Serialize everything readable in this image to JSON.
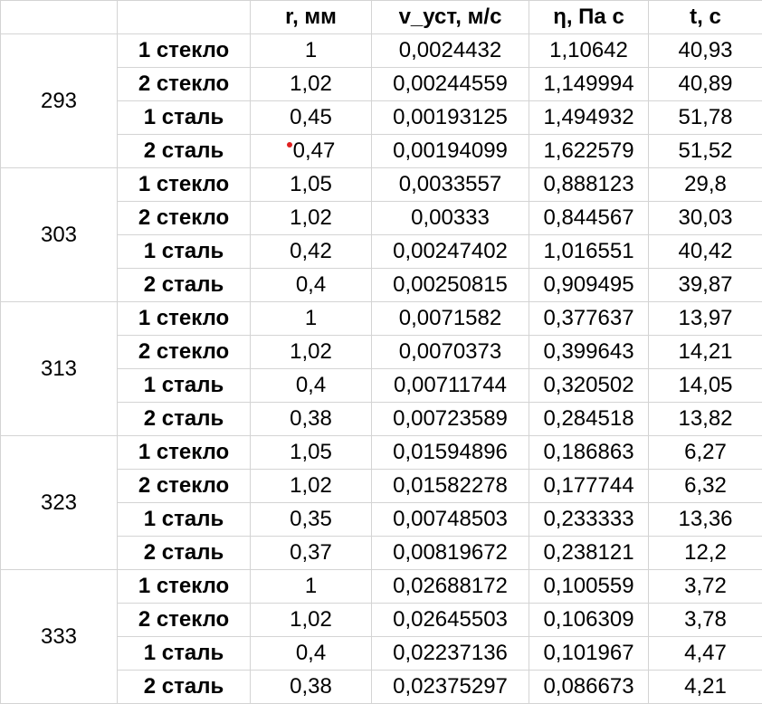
{
  "headers": [
    "",
    "r, мм",
    "v_уст, м/с",
    "η, Па с",
    "t, с"
  ],
  "colors": {
    "marker": "#e02020"
  },
  "groups": [
    {
      "temperature": "293",
      "rows": [
        {
          "sample": "1 стекло",
          "r": "1",
          "v": "0,0024432",
          "eta": "1,10642",
          "t": "40,93"
        },
        {
          "sample": "2 стекло",
          "r": "1,02",
          "v": "0,00244559",
          "eta": "1,149994",
          "t": "40,89"
        },
        {
          "sample": "1 сталь",
          "r": "0,45",
          "v": "0,00193125",
          "eta": "1,494932",
          "t": "51,78"
        },
        {
          "sample": "2 сталь",
          "r": "0,47",
          "v": "0,00194099",
          "eta": "1,622579",
          "t": "51,52",
          "marker": true
        }
      ]
    },
    {
      "temperature": "303",
      "rows": [
        {
          "sample": "1 стекло",
          "r": "1,05",
          "v": "0,0033557",
          "eta": "0,888123",
          "t": "29,8"
        },
        {
          "sample": "2 стекло",
          "r": "1,02",
          "v": "0,00333",
          "eta": "0,844567",
          "t": "30,03"
        },
        {
          "sample": "1 сталь",
          "r": "0,42",
          "v": "0,00247402",
          "eta": "1,016551",
          "t": "40,42"
        },
        {
          "sample": "2 сталь",
          "r": "0,4",
          "v": "0,00250815",
          "eta": "0,909495",
          "t": "39,87"
        }
      ]
    },
    {
      "temperature": "313",
      "rows": [
        {
          "sample": "1 стекло",
          "r": "1",
          "v": "0,0071582",
          "eta": "0,377637",
          "t": "13,97"
        },
        {
          "sample": "2 стекло",
          "r": "1,02",
          "v": "0,0070373",
          "eta": "0,399643",
          "t": "14,21"
        },
        {
          "sample": "1 сталь",
          "r": "0,4",
          "v": "0,00711744",
          "eta": "0,320502",
          "t": "14,05"
        },
        {
          "sample": "2 сталь",
          "r": "0,38",
          "v": "0,00723589",
          "eta": "0,284518",
          "t": "13,82"
        }
      ]
    },
    {
      "temperature": "323",
      "rows": [
        {
          "sample": "1 стекло",
          "r": "1,05",
          "v": "0,01594896",
          "eta": "0,186863",
          "t": "6,27"
        },
        {
          "sample": "2 стекло",
          "r": "1,02",
          "v": "0,01582278",
          "eta": "0,177744",
          "t": "6,32"
        },
        {
          "sample": "1 сталь",
          "r": "0,35",
          "v": "0,00748503",
          "eta": "0,233333",
          "t": "13,36"
        },
        {
          "sample": "2 сталь",
          "r": "0,37",
          "v": "0,00819672",
          "eta": "0,238121",
          "t": "12,2"
        }
      ]
    },
    {
      "temperature": "333",
      "rows": [
        {
          "sample": "1 стекло",
          "r": "1",
          "v": "0,02688172",
          "eta": "0,100559",
          "t": "3,72"
        },
        {
          "sample": "2 стекло",
          "r": "1,02",
          "v": "0,02645503",
          "eta": "0,106309",
          "t": "3,78"
        },
        {
          "sample": "1 сталь",
          "r": "0,4",
          "v": "0,02237136",
          "eta": "0,101967",
          "t": "4,47"
        },
        {
          "sample": "2 сталь",
          "r": "0,38",
          "v": "0,02375297",
          "eta": "0,086673",
          "t": "4,21"
        }
      ]
    }
  ]
}
